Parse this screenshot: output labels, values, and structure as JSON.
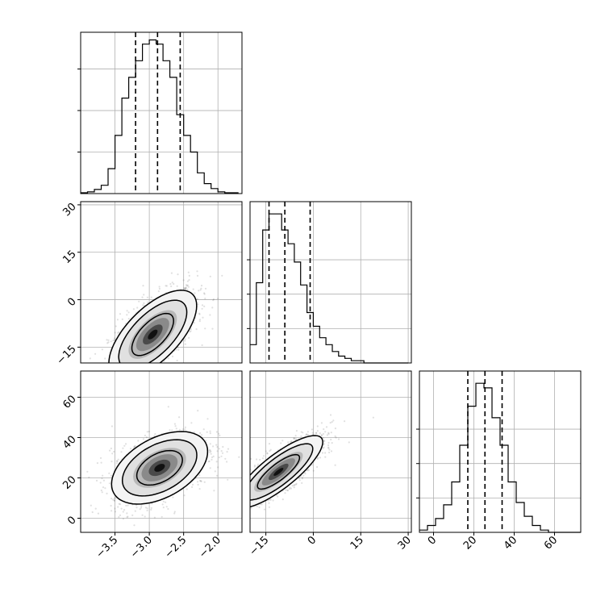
{
  "chart_data": {
    "type": "corner",
    "title": "",
    "grid": true,
    "colors": {
      "line": "#000000",
      "grid": "#b0b0b0",
      "background": "#ffffff",
      "scatter": "#555555"
    },
    "parameters": [
      {
        "name": "",
        "range": [
          -4.0,
          -1.65
        ],
        "ticks": [
          -3.5,
          -3.0,
          -2.5,
          -2.0
        ],
        "tick_labels": [
          "−3.5",
          "−3.0",
          "−2.5",
          "−2.0"
        ]
      },
      {
        "name": "",
        "range": [
          -20.0,
          31.0
        ],
        "ticks": [
          -15,
          0,
          15,
          30
        ],
        "tick_labels": [
          "−15",
          "0",
          "15",
          "30"
        ]
      },
      {
        "name": "",
        "range": [
          -7.0,
          73.0
        ],
        "ticks": [
          0,
          20,
          40,
          60
        ],
        "tick_labels": [
          "0",
          "20",
          "40",
          "60"
        ]
      }
    ],
    "diagonal": [
      {
        "param": 0,
        "bin_edges": [
          -4.0,
          -3.9,
          -3.8,
          -3.7,
          -3.6,
          -3.5,
          -3.4,
          -3.3,
          -3.2,
          -3.1,
          -3.0,
          -2.9,
          -2.8,
          -2.7,
          -2.6,
          -2.5,
          -2.4,
          -2.3,
          -2.2,
          -2.1,
          -2.0,
          -1.9,
          -1.8,
          -1.7
        ],
        "counts": [
          1,
          2,
          5,
          10,
          30,
          70,
          115,
          140,
          160,
          180,
          185,
          180,
          160,
          140,
          95,
          70,
          50,
          25,
          12,
          6,
          2,
          1,
          1
        ],
        "count_max": 185,
        "y_ticks": [
          50,
          100,
          150
        ],
        "quantiles": [
          -3.2,
          -2.88,
          -2.55
        ]
      },
      {
        "param": 1,
        "bin_edges": [
          -20,
          -18,
          -16,
          -14,
          -12,
          -10,
          -8,
          -6,
          -4,
          -2,
          0,
          2,
          4,
          6,
          8,
          10,
          12,
          14,
          16,
          18,
          20,
          22,
          24,
          26,
          28,
          30
        ],
        "counts": [
          8,
          35,
          58,
          65,
          65,
          58,
          52,
          44,
          34,
          22,
          16,
          11,
          8,
          5,
          3,
          2,
          1,
          1,
          0,
          0,
          0,
          0,
          0,
          0,
          0
        ],
        "count_max": 67,
        "y_ticks": [
          15,
          30,
          45
        ],
        "quantiles": [
          -14,
          -9,
          -1
        ]
      },
      {
        "param": 2,
        "bin_edges": [
          -7,
          -3,
          1,
          5,
          9,
          13,
          17,
          21,
          25,
          29,
          33,
          37,
          41,
          45,
          49,
          53,
          57,
          61,
          65,
          69,
          73
        ],
        "counts": [
          1,
          3,
          6,
          12,
          22,
          38,
          55,
          65,
          63,
          50,
          38,
          22,
          13,
          7,
          3,
          1,
          0,
          0,
          0,
          0
        ],
        "count_max": 67,
        "y_ticks": [
          15,
          30,
          45
        ],
        "quantiles": [
          17,
          25.5,
          34
        ]
      }
    ],
    "off_diagonal": [
      {
        "x_param": 0,
        "y_param": 1,
        "center": [
          -2.95,
          -11
        ],
        "sd": [
          0.32,
          7
        ],
        "corr": 0.65,
        "contour_levels": [
          "inner",
          "middle",
          "outer"
        ]
      },
      {
        "x_param": 0,
        "y_param": 2,
        "center": [
          -2.85,
          25
        ],
        "sd": [
          0.35,
          9
        ],
        "corr": 0.45,
        "contour_levels": [
          "inner",
          "middle",
          "outer"
        ]
      },
      {
        "x_param": 1,
        "y_param": 2,
        "center": [
          -11,
          23
        ],
        "sd": [
          7,
          9
        ],
        "corr": 0.82,
        "contour_levels": [
          "inner",
          "middle",
          "outer"
        ]
      }
    ]
  }
}
